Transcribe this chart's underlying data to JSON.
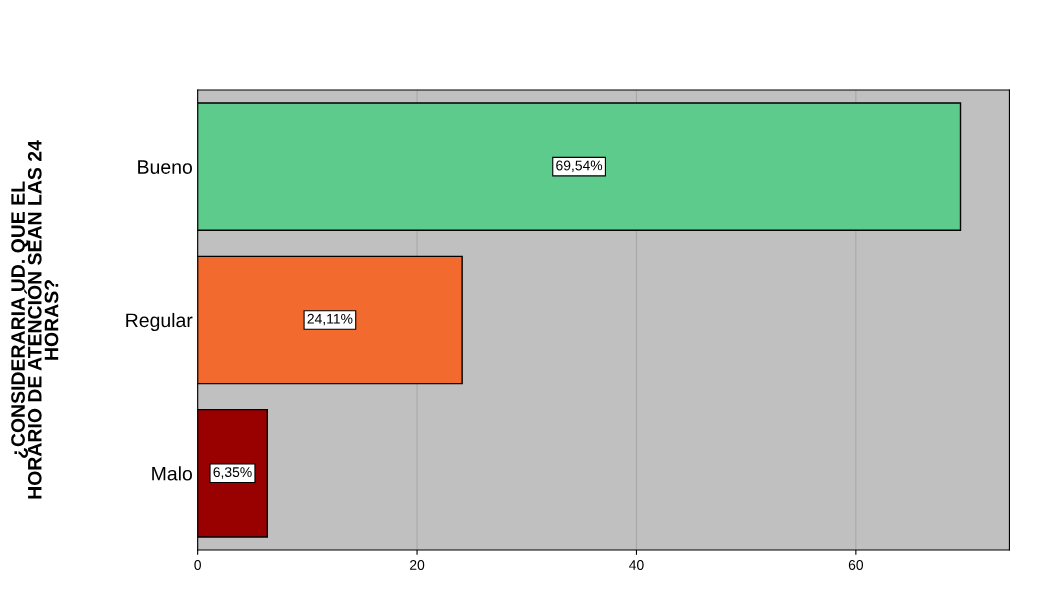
{
  "chart_data": {
    "type": "bar",
    "orientation": "horizontal",
    "ylabel": "¿CONSIDERARIA UD. QUE EL\nHORARIO DE ATENCIÓN SEAN LAS 24\nHORAS?",
    "categories": [
      "Bueno",
      "Regular",
      "Malo"
    ],
    "values": [
      69.54,
      24.11,
      6.35
    ],
    "colors": [
      "#5ccb8c",
      "#f26a2e",
      "#990000"
    ],
    "value_labels": [
      "69,54%",
      "24,11%",
      "6,35%"
    ],
    "xlim": [
      0,
      74
    ],
    "xticks": [
      0,
      20,
      40,
      60
    ],
    "grid": "x"
  }
}
